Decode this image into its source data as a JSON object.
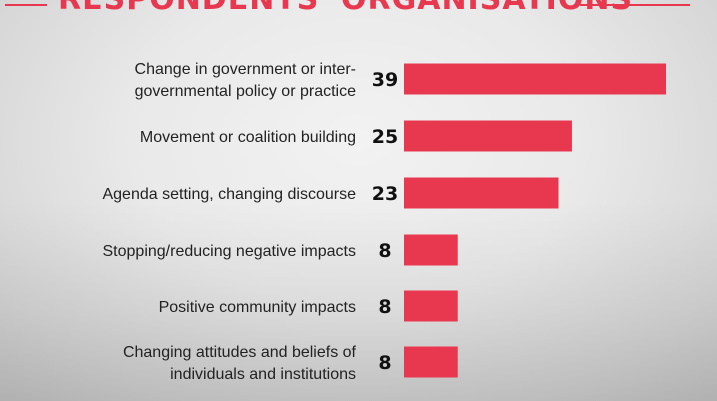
{
  "header": {
    "title": "RESPONDENTS' ORGANISATIONS"
  },
  "colors": {
    "accent": "#e8384f",
    "text": "#222222",
    "background": "#ebebeb"
  },
  "chart_data": {
    "type": "bar",
    "orientation": "horizontal",
    "title": "RESPONDENTS' ORGANISATIONS",
    "categories": [
      [
        "Change in government or inter-",
        "governmental policy or practice"
      ],
      [
        "Movement or coalition building"
      ],
      [
        "Agenda setting, changing discourse"
      ],
      [
        "Stopping/reducing negative impacts"
      ],
      [
        "Positive community impacts"
      ],
      [
        "Changing attitudes and beliefs of",
        "individuals and institutions"
      ]
    ],
    "values": [
      39,
      25,
      23,
      8,
      8,
      8
    ],
    "xlim": [
      0,
      39
    ],
    "grid": false,
    "legend": "none",
    "bar_color": "#e8384f"
  }
}
